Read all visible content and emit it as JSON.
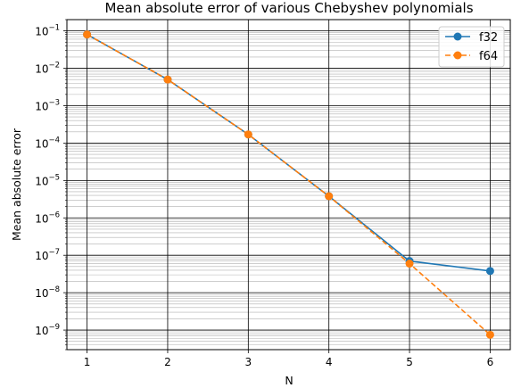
{
  "chart_data": {
    "type": "line",
    "title": "Mean absolute error of various Chebyshev polynomials",
    "xlabel": "N",
    "ylabel": "Mean absolute error",
    "x": [
      1,
      2,
      3,
      4,
      5,
      6
    ],
    "xlim": [
      0.75,
      6.25
    ],
    "yscale": "log",
    "ylim": [
      3e-10,
      0.2
    ],
    "grid": "major and minor",
    "legend_position": "top-right",
    "series": [
      {
        "name": "f32",
        "color": "#1f77b4",
        "linestyle": "solid",
        "marker": "circle",
        "values": [
          0.08,
          0.005,
          0.00017,
          3.8e-06,
          7e-08,
          3.8e-08
        ]
      },
      {
        "name": "f64",
        "color": "#ff7f0e",
        "linestyle": "dashed",
        "marker": "circle",
        "values": [
          0.08,
          0.005,
          0.00017,
          3.8e-06,
          6e-08,
          7.5e-10
        ]
      }
    ],
    "xticks": [
      "1",
      "2",
      "3",
      "4",
      "5",
      "6"
    ],
    "yticks": [
      {
        "base": "10",
        "exp": "−9",
        "value": 1e-09
      },
      {
        "base": "10",
        "exp": "−8",
        "value": 1e-08
      },
      {
        "base": "10",
        "exp": "−7",
        "value": 1e-07
      },
      {
        "base": "10",
        "exp": "−6",
        "value": 1e-06
      },
      {
        "base": "10",
        "exp": "−5",
        "value": 1e-05
      },
      {
        "base": "10",
        "exp": "−4",
        "value": 0.0001
      },
      {
        "base": "10",
        "exp": "−3",
        "value": 0.001
      },
      {
        "base": "10",
        "exp": "−2",
        "value": 0.01
      },
      {
        "base": "10",
        "exp": "−1",
        "value": 0.1
      }
    ]
  }
}
